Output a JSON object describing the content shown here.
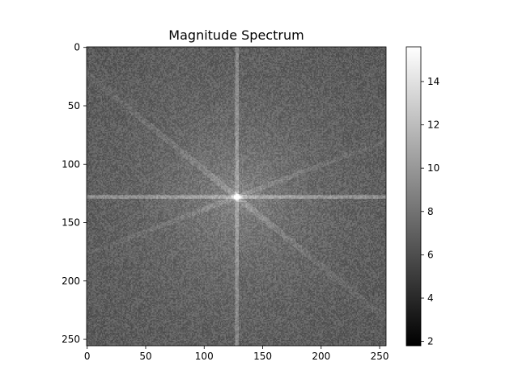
{
  "chart_data": {
    "type": "heatmap",
    "title": "Magnitude Spectrum",
    "xlabel": "",
    "ylabel": "",
    "colormap": "gray",
    "image_size": [
      256,
      256
    ],
    "xlim": [
      0,
      255
    ],
    "ylim": [
      255,
      0
    ],
    "x_ticks": [
      0,
      50,
      100,
      150,
      200,
      250
    ],
    "y_ticks": [
      0,
      50,
      100,
      150,
      200,
      250
    ],
    "colorbar": {
      "vmin": 1.8,
      "vmax": 15.6,
      "ticks": [
        2,
        4,
        6,
        8,
        10,
        12,
        14
      ]
    },
    "features": {
      "center_peak": [
        128,
        128
      ],
      "background_level": 6.5,
      "center_level": 15.5,
      "description_lines": [
        "horizontal",
        "vertical",
        "diagonal-neg",
        "diagonal-pos"
      ]
    }
  }
}
